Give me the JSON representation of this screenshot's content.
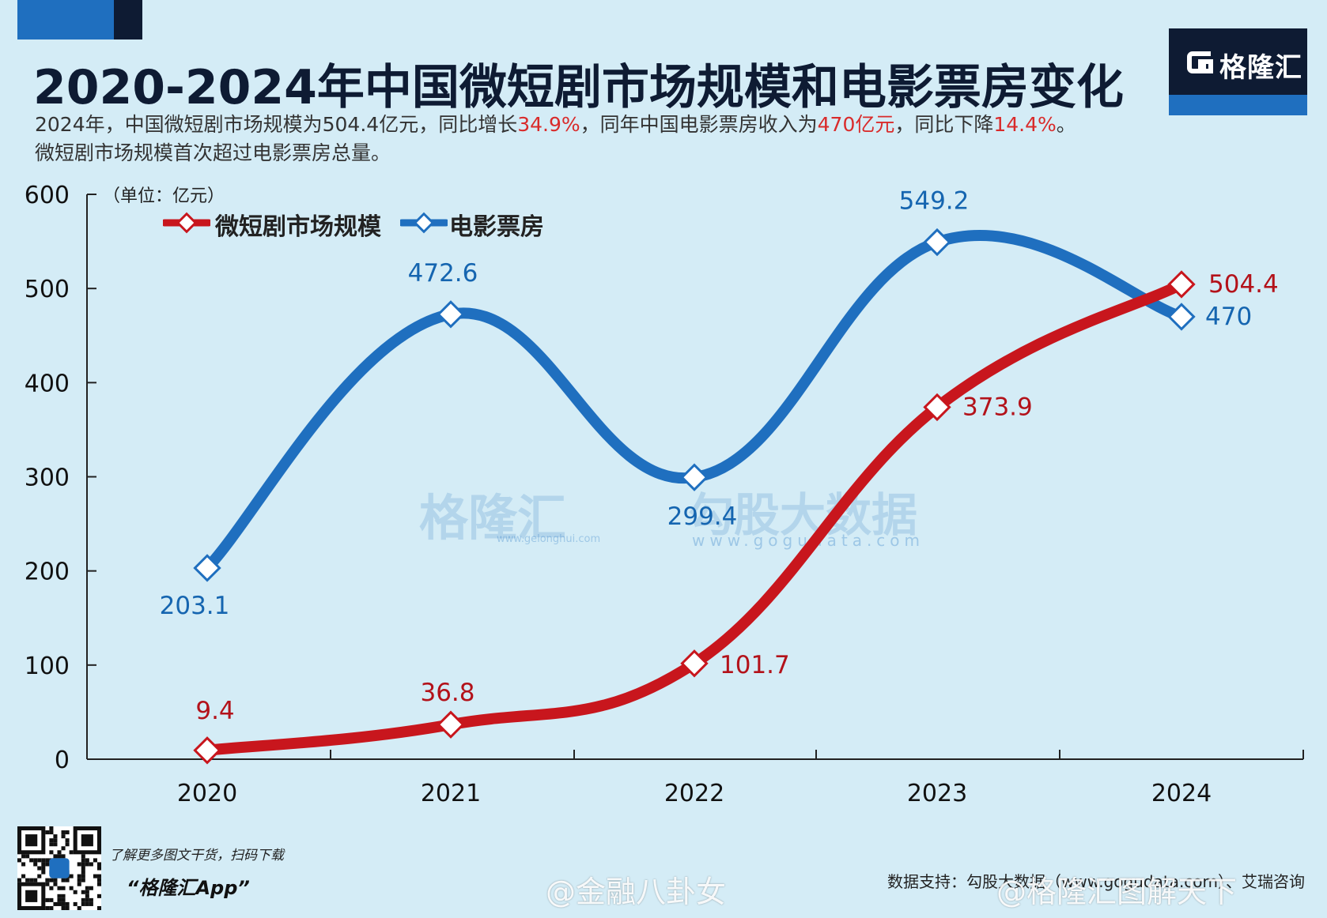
{
  "header": {
    "title": "2020-2024年中国微短剧市场规模和电影票房变化",
    "subtitle_parts": [
      {
        "text": "2024年，中国微短剧市场规模为504.4亿元，同比增长",
        "hl": false
      },
      {
        "text": "34.9%",
        "hl": true
      },
      {
        "text": "，同年中国电影票房收入为",
        "hl": false
      },
      {
        "text": "470亿元",
        "hl": true
      },
      {
        "text": "，同比下降",
        "hl": false
      },
      {
        "text": "14.4%",
        "hl": true
      },
      {
        "text": "。",
        "hl": false
      }
    ],
    "subtitle_line2": "微短剧市场规模首次超过电影票房总量。",
    "logo_text": "格隆汇"
  },
  "chart_data": {
    "type": "line",
    "title": "2020-2024年中国微短剧市场规模和电影票房变化",
    "unit_label": "（单位：亿元）",
    "categories": [
      "2020",
      "2021",
      "2022",
      "2023",
      "2024"
    ],
    "ylim": [
      0,
      600
    ],
    "yticks": [
      0,
      100,
      200,
      300,
      400,
      500,
      600
    ],
    "series": [
      {
        "name": "微短剧市场规模",
        "color": "#c8161d",
        "values": [
          9.4,
          36.8,
          101.7,
          373.9,
          504.4
        ],
        "labels": [
          "9.4",
          "36.8",
          "101.7",
          "373.9",
          "504.4"
        ]
      },
      {
        "name": "电影票房",
        "color": "#1f6fbf",
        "values": [
          203.1,
          472.6,
          299.4,
          549.2,
          470
        ],
        "labels": [
          "203.1",
          "472.6",
          "299.4",
          "549.2",
          "470"
        ]
      }
    ],
    "legend_position": "top-left"
  },
  "watermarks": {
    "brand1": "格隆汇",
    "brand1_url": "www.gelonghui.com",
    "brand2": "勾股大数据",
    "brand2_url": "www.gogudata.com"
  },
  "footer": {
    "qr_caption": "了解更多图文干货，扫码下载",
    "app_name": "“格隆汇App”",
    "source": "数据支持：勾股大数据（www.gogudata.com）、艾瑞咨询",
    "weibo_1": "@金融八卦女",
    "weibo_2": "@格隆汇图解天下"
  },
  "colors": {
    "background": "#d4ecf6",
    "accent_blue": "#1f6fbf",
    "accent_red": "#c8161d",
    "navy": "#0e1b33",
    "highlight_red": "#d92b2b"
  }
}
